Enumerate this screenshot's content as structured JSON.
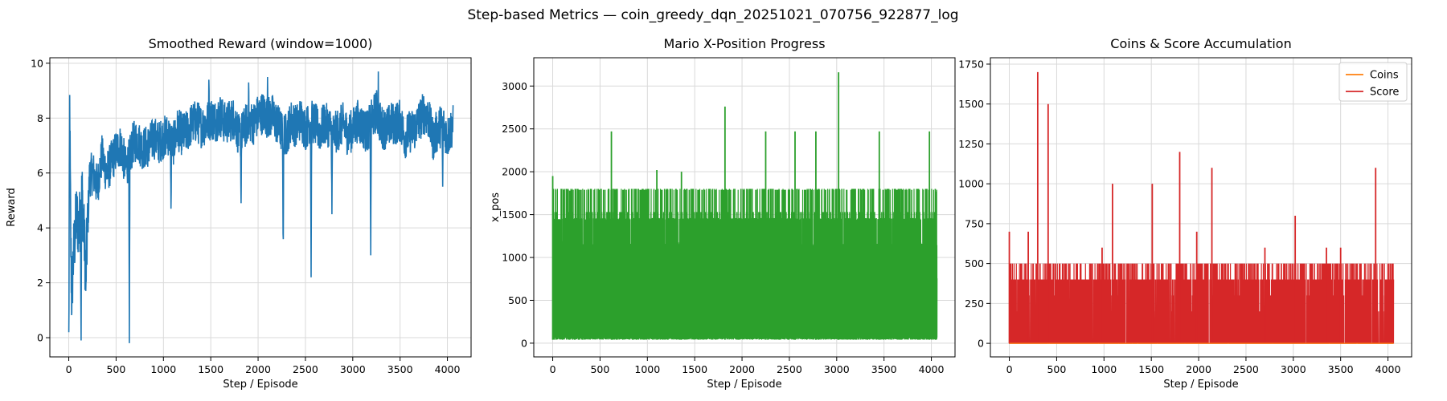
{
  "figure": {
    "suptitle": "Step-based Metrics — coin_greedy_dqn_20251021_070756_922877_log"
  },
  "colors": {
    "reward": "#1f77b4",
    "xpos": "#2ca02c",
    "coins": "#ff7f0e",
    "score": "#d62728",
    "grid": "#d9d9d9"
  },
  "chart_data": [
    {
      "type": "line",
      "title": "Smoothed Reward (window=1000)",
      "xlabel": "Step / Episode",
      "ylabel": "Reward",
      "xlim": [
        -200,
        4250
      ],
      "ylim": [
        -0.7,
        10.2
      ],
      "xticks": [
        0,
        500,
        1000,
        1500,
        2000,
        2500,
        3000,
        3500,
        4000
      ],
      "yticks": [
        0,
        2,
        4,
        6,
        8,
        10
      ],
      "grid": true,
      "legend": null,
      "series": [
        {
          "x": [
            0,
            10,
            20,
            30,
            50,
            80,
            110,
            140,
            180,
            220,
            260,
            300,
            350,
            400,
            450,
            500,
            550,
            600,
            640,
            680,
            720,
            780,
            850,
            900,
            950,
            1000,
            1050,
            1100,
            1150,
            1200,
            1250,
            1300,
            1350,
            1400,
            1450,
            1500,
            1550,
            1600,
            1650,
            1700,
            1750,
            1800,
            1850,
            1900,
            1950,
            2000,
            2050,
            2100,
            2150,
            2200,
            2250,
            2300,
            2350,
            2400,
            2450,
            2500,
            2550,
            2600,
            2650,
            2700,
            2750,
            2800,
            2850,
            2900,
            2950,
            3000,
            3050,
            3100,
            3150,
            3200,
            3250,
            3300,
            3350,
            3400,
            3450,
            3500,
            3550,
            3600,
            3650,
            3700,
            3750,
            3800,
            3850,
            3900,
            3950,
            4000,
            4050
          ],
          "y": [
            -0.2,
            8.4,
            3.8,
            1.5,
            3.0,
            4.4,
            4.0,
            5.3,
            2.4,
            5.9,
            6.0,
            5.5,
            6.6,
            6.0,
            6.4,
            6.8,
            7.0,
            6.2,
            6.5,
            7.1,
            7.2,
            6.9,
            7.0,
            7.3,
            7.1,
            7.3,
            7.4,
            7.0,
            7.6,
            7.4,
            7.5,
            7.8,
            7.9,
            7.7,
            7.8,
            8.0,
            7.9,
            8.1,
            7.8,
            7.9,
            8.0,
            7.3,
            7.6,
            7.9,
            7.8,
            8.1,
            8.2,
            8.0,
            8.1,
            7.8,
            7.5,
            7.4,
            7.9,
            7.7,
            8.0,
            7.6,
            7.9,
            7.8,
            7.5,
            7.8,
            7.7,
            7.4,
            7.6,
            7.8,
            7.4,
            7.6,
            7.9,
            7.7,
            7.5,
            7.9,
            8.3,
            7.7,
            7.6,
            7.8,
            7.8,
            7.9,
            7.3,
            7.5,
            7.6,
            7.9,
            8.2,
            8.0,
            7.2,
            7.6,
            7.8,
            7.3,
            7.7
          ],
          "noise": 0.8,
          "dips": [
            {
              "x": 130,
              "y": -0.1
            },
            {
              "x": 180,
              "y": 1.7
            },
            {
              "x": 640,
              "y": -0.2
            },
            {
              "x": 1080,
              "y": 4.7
            },
            {
              "x": 1820,
              "y": 4.9
            },
            {
              "x": 2265,
              "y": 2.9
            },
            {
              "x": 2560,
              "y": 2.2
            },
            {
              "x": 2780,
              "y": 4.5
            },
            {
              "x": 3190,
              "y": 3.0
            },
            {
              "x": 3950,
              "y": 5.5
            }
          ],
          "peaks": [
            {
              "x": 3270,
              "y": 9.7
            },
            {
              "x": 2100,
              "y": 9.5
            },
            {
              "x": 1900,
              "y": 9.3
            },
            {
              "x": 1480,
              "y": 9.4
            }
          ]
        }
      ]
    },
    {
      "type": "line",
      "title": "Mario X-Position Progress",
      "xlabel": "Step / Episode",
      "ylabel": "x_pos",
      "xlim": [
        -200,
        4250
      ],
      "ylim": [
        -160,
        3330
      ],
      "xticks": [
        0,
        500,
        1000,
        1500,
        2000,
        2500,
        3000,
        3500,
        4000
      ],
      "yticks": [
        0,
        500,
        1000,
        1500,
        2000,
        2500,
        3000
      ],
      "grid": true,
      "legend": null,
      "series": [
        {
          "x_range": [
            0,
            4060
          ],
          "base_low": 40,
          "typical_high": [
            1140,
            1440,
            1530,
            1790,
            1800
          ],
          "spikes": [
            {
              "x": 0,
              "y": 1950
            },
            {
              "x": 180,
              "y": 1780
            },
            {
              "x": 620,
              "y": 2470
            },
            {
              "x": 1820,
              "y": 2760
            },
            {
              "x": 2250,
              "y": 2470
            },
            {
              "x": 2560,
              "y": 2470
            },
            {
              "x": 2780,
              "y": 2470
            },
            {
              "x": 3020,
              "y": 3160
            },
            {
              "x": 3450,
              "y": 2470
            },
            {
              "x": 3980,
              "y": 2470
            },
            {
              "x": 1360,
              "y": 2000
            },
            {
              "x": 1100,
              "y": 2020
            },
            {
              "x": 4050,
              "y": 1770
            }
          ]
        }
      ]
    },
    {
      "type": "line",
      "title": "Coins & Score Accumulation",
      "xlabel": "Step / Episode",
      "ylabel": "",
      "xlim": [
        -200,
        4250
      ],
      "ylim": [
        -85,
        1790
      ],
      "xticks": [
        0,
        500,
        1000,
        1500,
        2000,
        2500,
        3000,
        3500,
        4000
      ],
      "yticks": [
        0,
        250,
        500,
        750,
        1000,
        1250,
        1500,
        1750
      ],
      "grid": true,
      "legend": {
        "placement": "top-right",
        "entries": [
          "Coins",
          "Score"
        ]
      },
      "series": [
        {
          "name": "Coins",
          "values": "near zero",
          "x_range": [
            0,
            4060
          ],
          "level": 0
        },
        {
          "name": "Score",
          "x_range": [
            0,
            4060
          ],
          "typical_high": [
            200,
            300,
            400,
            500
          ],
          "spikes": [
            {
              "x": 300,
              "y": 1700
            },
            {
              "x": 410,
              "y": 1500
            },
            {
              "x": 1090,
              "y": 1000
            },
            {
              "x": 1510,
              "y": 1000
            },
            {
              "x": 1800,
              "y": 1200
            },
            {
              "x": 2140,
              "y": 1100
            },
            {
              "x": 3020,
              "y": 800
            },
            {
              "x": 3870,
              "y": 1100
            },
            {
              "x": 0,
              "y": 700
            },
            {
              "x": 200,
              "y": 700
            },
            {
              "x": 980,
              "y": 600
            },
            {
              "x": 1980,
              "y": 700
            },
            {
              "x": 2700,
              "y": 600
            },
            {
              "x": 3350,
              "y": 600
            },
            {
              "x": 3500,
              "y": 600
            }
          ]
        }
      ]
    }
  ]
}
